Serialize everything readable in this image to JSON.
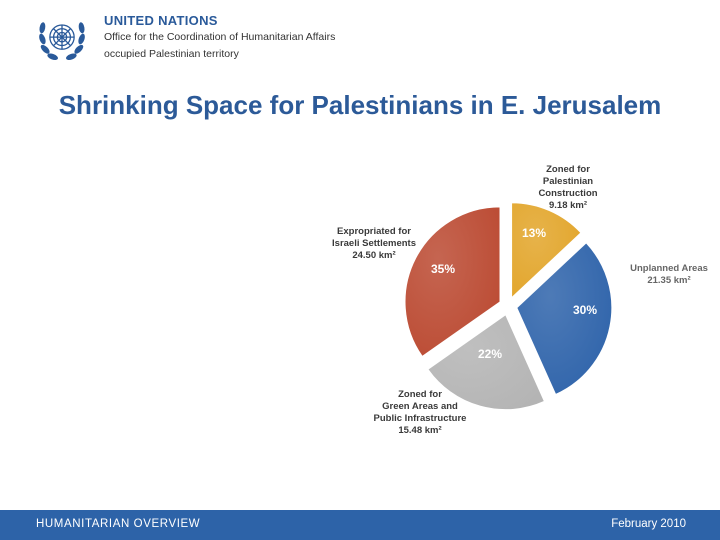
{
  "header": {
    "org_name": "UNITED NATIONS",
    "office": "Office for the Coordination of Humanitarian Affairs",
    "territory": "occupied Palestinian territory"
  },
  "title": "Shrinking Space for Palestinians in E. Jerusalem",
  "chart_data": {
    "type": "pie",
    "title": "",
    "slices": [
      {
        "label_lines": [
          "Zoned for",
          "Palestinian",
          "Construction",
          "9.18 km²"
        ],
        "value": 9.18,
        "percent": "13%",
        "color": "#e2a52a"
      },
      {
        "label_lines": [
          "Unplanned Areas",
          "21.35 km²"
        ],
        "value": 21.35,
        "percent": "30%",
        "color": "#2e63aa"
      },
      {
        "label_lines": [
          "Zoned for",
          "Green Areas and",
          "Public Infrastructure",
          "15.48 km²"
        ],
        "value": 15.48,
        "percent": "22%",
        "color": "#b4b4b4"
      },
      {
        "label_lines": [
          "Expropriated for",
          "Israeli Settlements",
          "24.50 km²"
        ],
        "value": 24.5,
        "percent": "35%",
        "color": "#bb4a32"
      }
    ],
    "legend": "none",
    "exploded": true
  },
  "footer": {
    "left": "HUMANITARIAN OVERVIEW",
    "right": "February 2010"
  }
}
